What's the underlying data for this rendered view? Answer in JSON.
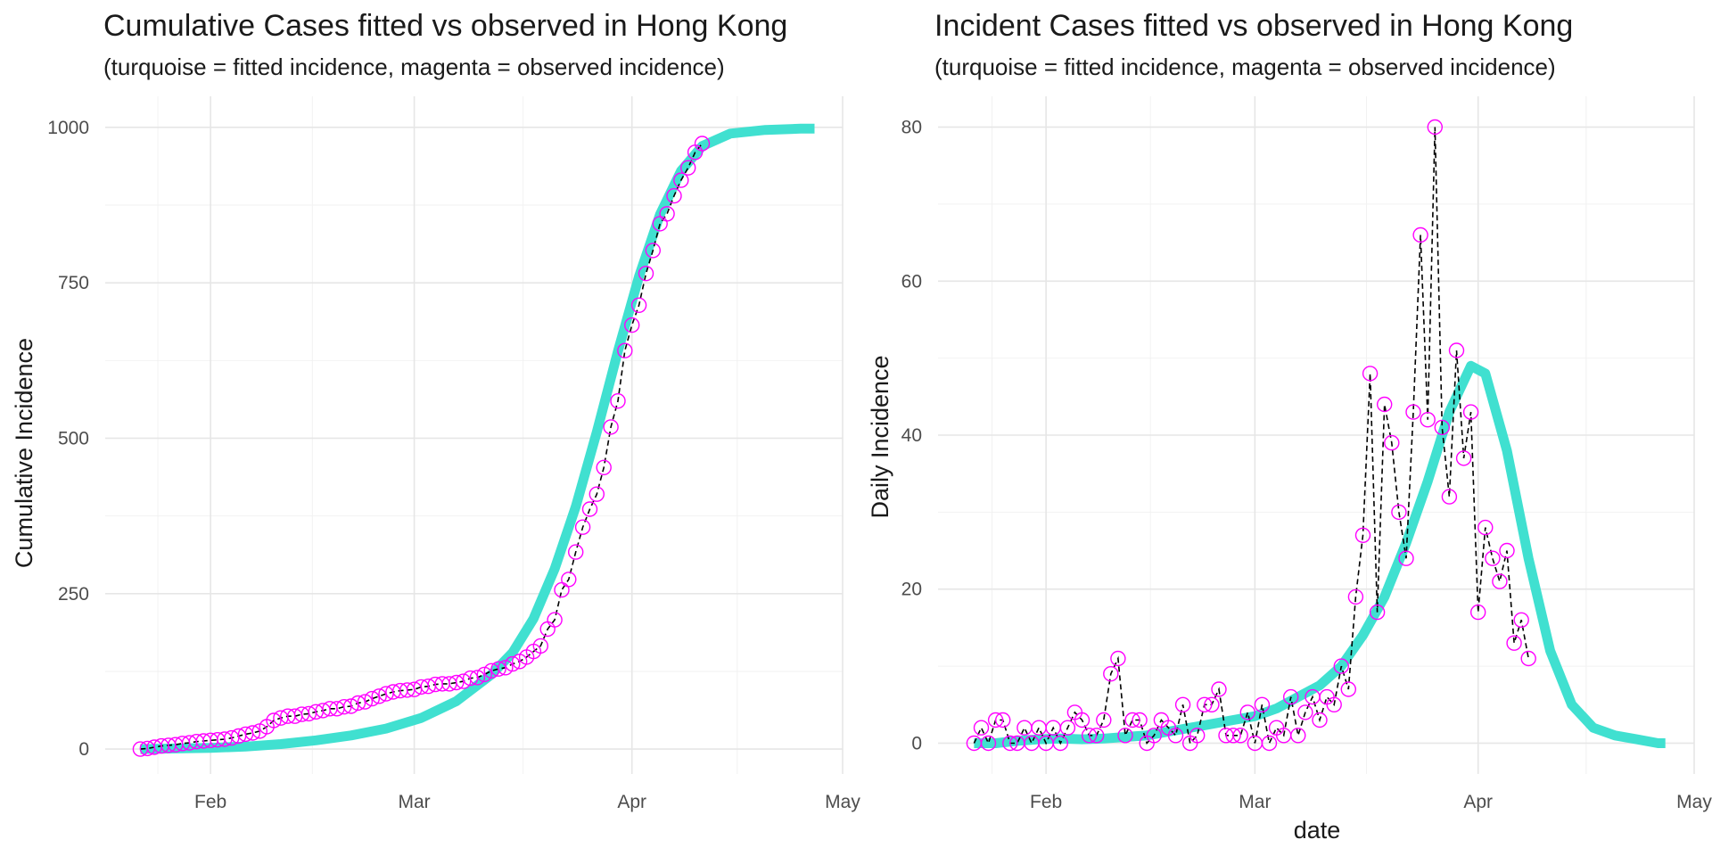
{
  "chart_data": [
    {
      "type": "line",
      "title": "Cumulative Cases fitted vs observed in Hong Kong",
      "subtitle": "(turquoise = fitted incidence, magenta = observed incidence)",
      "xlabel": "",
      "ylabel": "Cumulative Incidence",
      "x_ticks": [
        "Feb",
        "Mar",
        "Apr",
        "May"
      ],
      "x_tick_dates": [
        "2020-02-01",
        "2020-03-01",
        "2020-04-01",
        "2020-05-01"
      ],
      "xlim": [
        "2020-01-17",
        "2020-05-01"
      ],
      "ylim": [
        -40,
        1050
      ],
      "y_ticks": [
        0,
        250,
        500,
        750,
        1000
      ],
      "grid": true,
      "colors": {
        "fitted": "#40E0D0",
        "observed": "#FF00FF",
        "connector": "#000000"
      },
      "series": [
        {
          "style": "fitted",
          "x": [
            "2020-01-22",
            "2020-01-27",
            "2020-02-01",
            "2020-02-06",
            "2020-02-11",
            "2020-02-16",
            "2020-02-21",
            "2020-02-26",
            "2020-03-02",
            "2020-03-07",
            "2020-03-12",
            "2020-03-15",
            "2020-03-18",
            "2020-03-21",
            "2020-03-24",
            "2020-03-27",
            "2020-03-30",
            "2020-04-02",
            "2020-04-05",
            "2020-04-08",
            "2020-04-11",
            "2020-04-15",
            "2020-04-20",
            "2020-04-25",
            "2020-04-27"
          ],
          "y": [
            0,
            1,
            2,
            4,
            8,
            14,
            22,
            33,
            50,
            77,
            120,
            155,
            210,
            290,
            390,
            510,
            640,
            760,
            860,
            930,
            970,
            990,
            996,
            998,
            998
          ]
        },
        {
          "style": "observed",
          "x": [
            "2020-01-22",
            "2020-01-23",
            "2020-01-24",
            "2020-01-25",
            "2020-01-26",
            "2020-01-27",
            "2020-01-28",
            "2020-01-29",
            "2020-01-30",
            "2020-01-31",
            "2020-02-01",
            "2020-02-02",
            "2020-02-03",
            "2020-02-04",
            "2020-02-05",
            "2020-02-06",
            "2020-02-07",
            "2020-02-08",
            "2020-02-09",
            "2020-02-10",
            "2020-02-11",
            "2020-02-12",
            "2020-02-13",
            "2020-02-14",
            "2020-02-15",
            "2020-02-16",
            "2020-02-17",
            "2020-02-18",
            "2020-02-19",
            "2020-02-20",
            "2020-02-21",
            "2020-02-22",
            "2020-02-23",
            "2020-02-24",
            "2020-02-25",
            "2020-02-26",
            "2020-02-27",
            "2020-02-28",
            "2020-02-29",
            "2020-03-01",
            "2020-03-02",
            "2020-03-03",
            "2020-03-04",
            "2020-03-05",
            "2020-03-06",
            "2020-03-07",
            "2020-03-08",
            "2020-03-09",
            "2020-03-10",
            "2020-03-11",
            "2020-03-12",
            "2020-03-13",
            "2020-03-14",
            "2020-03-15",
            "2020-03-16",
            "2020-03-17",
            "2020-03-18",
            "2020-03-19",
            "2020-03-20",
            "2020-03-21",
            "2020-03-22",
            "2020-03-23",
            "2020-03-24",
            "2020-03-25",
            "2020-03-26",
            "2020-03-27",
            "2020-03-28",
            "2020-03-29",
            "2020-03-30",
            "2020-03-31",
            "2020-04-01",
            "2020-04-02",
            "2020-04-03",
            "2020-04-04",
            "2020-04-05",
            "2020-04-06",
            "2020-04-07",
            "2020-04-08",
            "2020-04-09",
            "2020-04-10",
            "2020-04-11"
          ],
          "y": [
            0,
            1,
            3,
            5,
            6,
            7,
            9,
            10,
            12,
            13,
            14,
            15,
            16,
            18,
            21,
            24,
            26,
            29,
            36,
            46,
            50,
            53,
            53,
            56,
            57,
            60,
            62,
            65,
            65,
            68,
            69,
            74,
            76,
            81,
            85,
            89,
            92,
            94,
            95,
            96,
            100,
            101,
            104,
            105,
            105,
            107,
            109,
            114,
            115,
            120,
            126,
            129,
            131,
            137,
            141,
            148,
            157,
            166,
            193,
            208,
            256,
            273,
            317,
            357,
            386,
            410,
            453,
            518,
            560,
            641,
            682,
            714,
            765,
            802,
            845,
            861,
            890,
            915,
            935,
            960,
            974
          ]
        }
      ]
    },
    {
      "type": "line",
      "title": "Incident Cases fitted vs observed in Hong Kong",
      "subtitle": "(turquoise = fitted incidence, magenta = observed incidence)",
      "xlabel": "date",
      "ylabel": "Daily Incidence",
      "x_ticks": [
        "Feb",
        "Mar",
        "Apr",
        "May"
      ],
      "x_tick_dates": [
        "2020-02-01",
        "2020-03-01",
        "2020-04-01",
        "2020-05-01"
      ],
      "xlim": [
        "2020-01-17",
        "2020-05-01"
      ],
      "ylim": [
        -4,
        84
      ],
      "y_ticks": [
        0,
        20,
        40,
        60,
        80
      ],
      "grid": true,
      "colors": {
        "fitted": "#40E0D0",
        "observed": "#FF00FF",
        "connector": "#000000"
      },
      "series": [
        {
          "style": "fitted",
          "x": [
            "2020-01-22",
            "2020-01-25",
            "2020-01-28",
            "2020-01-31",
            "2020-02-03",
            "2020-02-06",
            "2020-02-09",
            "2020-02-12",
            "2020-02-15",
            "2020-02-18",
            "2020-02-21",
            "2020-02-24",
            "2020-02-27",
            "2020-03-01",
            "2020-03-04",
            "2020-03-07",
            "2020-03-10",
            "2020-03-13",
            "2020-03-16",
            "2020-03-19",
            "2020-03-22",
            "2020-03-25",
            "2020-03-28",
            "2020-03-31",
            "2020-04-02",
            "2020-04-05",
            "2020-04-08",
            "2020-04-11",
            "2020-04-14",
            "2020-04-17",
            "2020-04-20",
            "2020-04-23",
            "2020-04-26",
            "2020-04-27"
          ],
          "y": [
            0,
            0,
            0.3,
            0.5,
            0.6,
            0.5,
            0.6,
            0.8,
            1,
            1.5,
            2,
            2.5,
            3,
            3.5,
            4.5,
            6,
            7.5,
            10,
            14,
            19,
            26,
            34,
            43,
            49,
            48,
            38,
            24,
            12,
            5,
            2,
            1,
            0.5,
            0,
            0
          ]
        },
        {
          "style": "observed",
          "x": [
            "2020-01-22",
            "2020-01-23",
            "2020-01-24",
            "2020-01-25",
            "2020-01-26",
            "2020-01-27",
            "2020-01-28",
            "2020-01-29",
            "2020-01-30",
            "2020-01-31",
            "2020-02-01",
            "2020-02-02",
            "2020-02-03",
            "2020-02-04",
            "2020-02-05",
            "2020-02-06",
            "2020-02-07",
            "2020-02-08",
            "2020-02-09",
            "2020-02-10",
            "2020-02-11",
            "2020-02-12",
            "2020-02-13",
            "2020-02-14",
            "2020-02-15",
            "2020-02-16",
            "2020-02-17",
            "2020-02-18",
            "2020-02-19",
            "2020-02-20",
            "2020-02-21",
            "2020-02-22",
            "2020-02-23",
            "2020-02-24",
            "2020-02-25",
            "2020-02-26",
            "2020-02-27",
            "2020-02-28",
            "2020-02-29",
            "2020-03-01",
            "2020-03-02",
            "2020-03-03",
            "2020-03-04",
            "2020-03-05",
            "2020-03-06",
            "2020-03-07",
            "2020-03-08",
            "2020-03-09",
            "2020-03-10",
            "2020-03-11",
            "2020-03-12",
            "2020-03-13",
            "2020-03-14",
            "2020-03-15",
            "2020-03-16",
            "2020-03-17",
            "2020-03-18",
            "2020-03-19",
            "2020-03-20",
            "2020-03-21",
            "2020-03-22",
            "2020-03-23",
            "2020-03-24",
            "2020-03-25",
            "2020-03-26",
            "2020-03-27",
            "2020-03-28",
            "2020-03-29",
            "2020-03-30",
            "2020-03-31",
            "2020-04-01",
            "2020-04-02",
            "2020-04-03",
            "2020-04-04",
            "2020-04-05",
            "2020-04-06",
            "2020-04-07",
            "2020-04-08",
            "2020-04-09",
            "2020-04-10",
            "2020-04-11"
          ],
          "y": [
            0,
            2,
            0,
            3,
            3,
            0,
            0,
            2,
            0,
            2,
            0,
            2,
            0,
            2,
            4,
            3,
            1,
            1,
            3,
            9,
            11,
            1,
            3,
            3,
            0,
            1,
            3,
            2,
            1,
            5,
            0,
            1,
            5,
            5,
            7,
            1,
            1,
            1,
            4,
            0,
            5,
            0,
            2,
            1,
            6,
            1,
            4,
            6,
            3,
            6,
            5,
            10,
            7,
            19,
            27,
            48,
            17,
            44,
            39,
            30,
            24,
            43,
            66,
            42,
            80,
            41,
            32,
            51,
            37,
            43,
            17,
            28,
            24,
            21,
            25,
            13,
            16,
            11,
            null,
            null,
            null
          ]
        }
      ]
    }
  ]
}
